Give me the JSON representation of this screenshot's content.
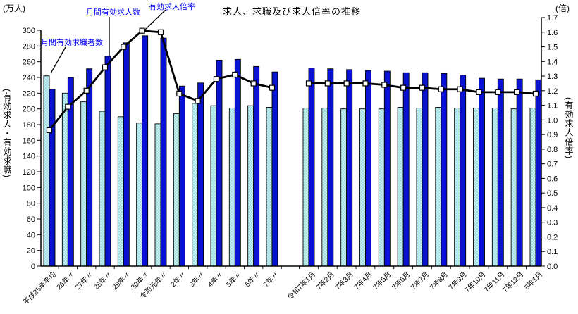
{
  "chart_data": {
    "type": "bar+line",
    "title": "求人、求職及び求人倍率の推移",
    "grid": false,
    "legend_position": "in-plot annotations with pointer lines",
    "gap_after_index": 12,
    "categories": [
      "平成25年平均",
      "26年〃",
      "27年〃",
      "28年〃",
      "29年〃",
      "30年〃",
      "令和元年〃",
      "2年〃",
      "3年〃",
      "4年〃",
      "5年〃",
      "6年〃",
      "7年〃",
      "令和7年1月",
      "7年2月",
      "7年3月",
      "7年4月",
      "7年5月",
      "7年6月",
      "7年7月",
      "7年8月",
      "7年9月",
      "7年10月",
      "7年11月",
      "7年12月",
      "8年1月"
    ],
    "left_axis": {
      "unit": "(万人)",
      "title": "(有効求人・有効求職)",
      "min": 0,
      "max": 300,
      "tick_step": 20
    },
    "right_axis": {
      "unit": "(倍)",
      "title": "(有効求人倍率)",
      "min": 0.0,
      "max": 1.7,
      "tick_step": 0.1
    },
    "series": [
      {
        "name": "月間有効求職者数",
        "type": "bar",
        "axis": "left",
        "color": "#c6eff1",
        "values": [
          242,
          220,
          209,
          197,
          190,
          182,
          181,
          194,
          207,
          204,
          201,
          204,
          202,
          201,
          201,
          200,
          200,
          200,
          202,
          201,
          202,
          201,
          201,
          201,
          200,
          201
        ]
      },
      {
        "name": "月間有効求人数",
        "type": "bar",
        "axis": "left",
        "color": "#0a12d2",
        "values": [
          225,
          240,
          251,
          267,
          284,
          293,
          290,
          229,
          233,
          262,
          263,
          254,
          247,
          252,
          251,
          250,
          249,
          248,
          246,
          246,
          245,
          243,
          239,
          238,
          238,
          237
        ]
      },
      {
        "name": "有効求人倍率",
        "type": "line",
        "axis": "right",
        "color": "#000000",
        "marker": "white-square",
        "values": [
          0.93,
          1.09,
          1.2,
          1.36,
          1.5,
          1.61,
          1.6,
          1.18,
          1.13,
          1.28,
          1.31,
          1.25,
          1.22,
          1.25,
          1.25,
          1.25,
          1.25,
          1.24,
          1.22,
          1.22,
          1.21,
          1.21,
          1.19,
          1.19,
          1.19,
          1.18
        ]
      }
    ],
    "colors": {
      "seekers_bar_dots": "#6fc4cc",
      "bar_border": "#000000",
      "axis": "#000000",
      "annotation_text": "#0000ff",
      "marker_fill": "#ffffff"
    }
  }
}
